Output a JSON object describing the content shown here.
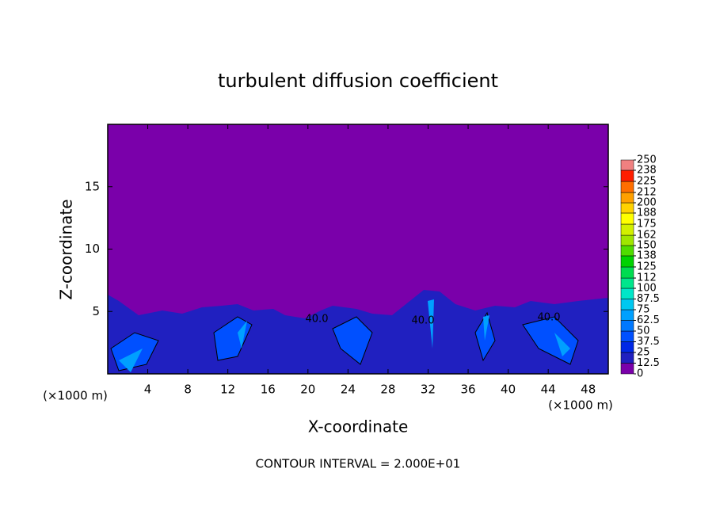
{
  "chart_data": {
    "type": "contour",
    "title": "turbulent diffusion coefficient",
    "xlabel": "X-coordinate",
    "ylabel": "Z-coordinate",
    "x_unit": "(×1000 m)",
    "footer": "CONTOUR INTERVAL = 2.000E+01",
    "annotations": [
      "40.0",
      "40.0",
      "40.0"
    ],
    "xlim": [
      0,
      50
    ],
    "xticks": [
      4,
      8,
      12,
      16,
      20,
      24,
      28,
      32,
      36,
      40,
      44,
      48
    ],
    "ylim": [
      0,
      20
    ],
    "yticks": [
      5,
      10,
      15
    ],
    "colorbar": {
      "levels": [
        0,
        12.5,
        25,
        37.5,
        50,
        62.5,
        75,
        87.5,
        100,
        112,
        125,
        138,
        150,
        162,
        175,
        188,
        200,
        212,
        225,
        238,
        250
      ],
      "colors": [
        "#7a00aa",
        "#2020c0",
        "#0028e6",
        "#0050ff",
        "#0078ff",
        "#00a0ff",
        "#00c8f0",
        "#00e6c8",
        "#00e68c",
        "#00dc50",
        "#00d200",
        "#50dc00",
        "#a0e600",
        "#d2f000",
        "#ffff00",
        "#ffd200",
        "#ffa000",
        "#ff6e00",
        "#ff1e00",
        "#f08080"
      ]
    }
  }
}
